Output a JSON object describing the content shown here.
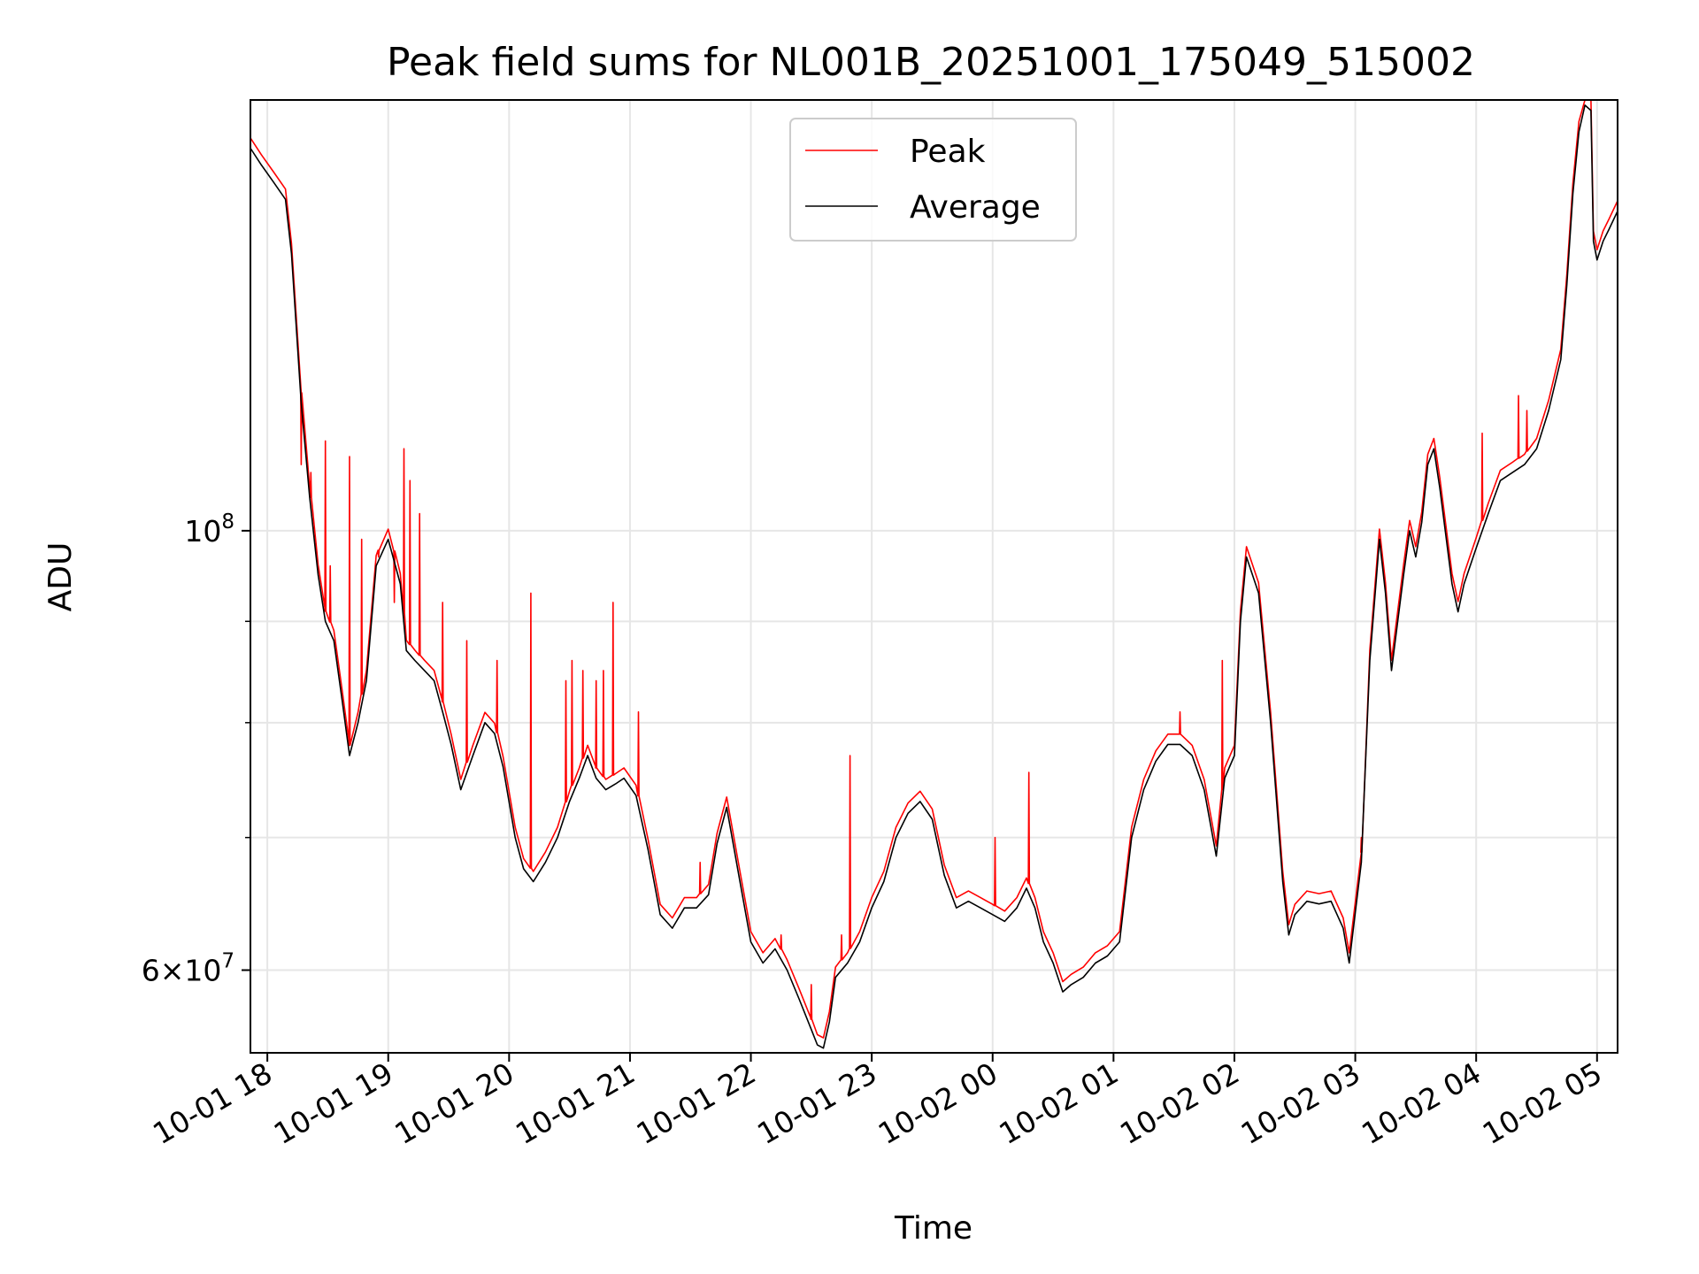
{
  "chart_data": {
    "type": "line",
    "title": "Peak field sums for NL001B_20251001_175049_515002",
    "xlabel": "Time",
    "ylabel": "ADU",
    "yscale": "log",
    "ylim": [
      54500000,
      165000000
    ],
    "xlim": [
      17.86,
      29.17
    ],
    "grid": true,
    "legend": {
      "location": "upper center",
      "entries": [
        "Peak",
        "Average"
      ]
    },
    "x_ticks": [
      {
        "value": 18,
        "label": "10-01 18"
      },
      {
        "value": 19,
        "label": "10-01 19"
      },
      {
        "value": 20,
        "label": "10-01 20"
      },
      {
        "value": 21,
        "label": "10-01 21"
      },
      {
        "value": 22,
        "label": "10-01 22"
      },
      {
        "value": 23,
        "label": "10-01 23"
      },
      {
        "value": 24,
        "label": "10-02 00"
      },
      {
        "value": 25,
        "label": "10-02 01"
      },
      {
        "value": 26,
        "label": "10-02 02"
      },
      {
        "value": 27,
        "label": "10-02 03"
      },
      {
        "value": 28,
        "label": "10-02 04"
      },
      {
        "value": 29,
        "label": "10-02 05"
      }
    ],
    "y_major_ticks": [
      {
        "value": 60000000,
        "base": "6",
        "exp": "7",
        "mult": true
      },
      {
        "value": 100000000,
        "base": "10",
        "exp": "8",
        "mult": false
      }
    ],
    "y_minor_ticks": [
      70000000,
      80000000,
      90000000
    ],
    "x_unit": "hours since 10-01 00:00",
    "series": [
      {
        "name": "Average",
        "color": "#000000",
        "x": [
          17.86,
          17.95,
          18.05,
          18.15,
          18.2,
          18.28,
          18.35,
          18.42,
          18.48,
          18.55,
          18.62,
          18.68,
          18.75,
          18.82,
          18.9,
          19.0,
          19.1,
          19.15,
          19.22,
          19.3,
          19.38,
          19.45,
          19.52,
          19.6,
          19.7,
          19.8,
          19.88,
          19.95,
          20.05,
          20.12,
          20.2,
          20.3,
          20.4,
          20.5,
          20.58,
          20.65,
          20.72,
          20.8,
          20.88,
          20.95,
          21.05,
          21.15,
          21.25,
          21.35,
          21.45,
          21.55,
          21.65,
          21.72,
          21.8,
          21.9,
          22.0,
          22.1,
          22.2,
          22.3,
          22.4,
          22.5,
          22.55,
          22.6,
          22.65,
          22.7,
          22.8,
          22.9,
          23.0,
          23.1,
          23.2,
          23.3,
          23.4,
          23.5,
          23.6,
          23.7,
          23.8,
          23.9,
          24.0,
          24.1,
          24.2,
          24.28,
          24.35,
          24.42,
          24.5,
          24.58,
          24.65,
          24.75,
          24.85,
          24.95,
          25.05,
          25.15,
          25.25,
          25.35,
          25.45,
          25.55,
          25.65,
          25.75,
          25.85,
          25.92,
          26.0,
          26.05,
          26.1,
          26.2,
          26.3,
          26.4,
          26.45,
          26.5,
          26.6,
          26.7,
          26.8,
          26.9,
          26.95,
          27.05,
          27.12,
          27.2,
          27.25,
          27.3,
          27.4,
          27.45,
          27.5,
          27.55,
          27.6,
          27.65,
          27.7,
          27.8,
          27.85,
          27.9,
          28.0,
          28.1,
          28.2,
          28.3,
          28.4,
          28.5,
          28.6,
          28.7,
          28.75,
          28.8,
          28.85,
          28.9,
          28.95,
          28.97,
          29.0,
          29.05,
          29.1,
          29.17
        ],
        "y": [
          156000000,
          153000000,
          150000000,
          147000000,
          138000000,
          116000000,
          104000000,
          95000000,
          90000000,
          88000000,
          82000000,
          77000000,
          80000000,
          84000000,
          96000000,
          99000000,
          94000000,
          87000000,
          86000000,
          85000000,
          84000000,
          81000000,
          78000000,
          74000000,
          77000000,
          80000000,
          79000000,
          76000000,
          70000000,
          67500000,
          66500000,
          68000000,
          70000000,
          73000000,
          75000000,
          77000000,
          75000000,
          74000000,
          74500000,
          75000000,
          73500000,
          69000000,
          64000000,
          63000000,
          64500000,
          64500000,
          65500000,
          69500000,
          72500000,
          67000000,
          62000000,
          60500000,
          61500000,
          60000000,
          58000000,
          56000000,
          55000000,
          54800000,
          56500000,
          59500000,
          60500000,
          62000000,
          64500000,
          66500000,
          70000000,
          72000000,
          73000000,
          71500000,
          67000000,
          64500000,
          65000000,
          64500000,
          64000000,
          63500000,
          64500000,
          66000000,
          64500000,
          62000000,
          60500000,
          58500000,
          59000000,
          59500000,
          60500000,
          61000000,
          62000000,
          70000000,
          74000000,
          76500000,
          78000000,
          78000000,
          77000000,
          74000000,
          68500000,
          75000000,
          77000000,
          90000000,
          97000000,
          93000000,
          80000000,
          66500000,
          62500000,
          64000000,
          65000000,
          64800000,
          65000000,
          63000000,
          60500000,
          68000000,
          86000000,
          99000000,
          93000000,
          85000000,
          95000000,
          100000000,
          97000000,
          101000000,
          108000000,
          110000000,
          105000000,
          94000000,
          91000000,
          94000000,
          98000000,
          102000000,
          106000000,
          107000000,
          108000000,
          110000000,
          115000000,
          122000000,
          133000000,
          148000000,
          159000000,
          164000000,
          163000000,
          140000000,
          137000000,
          140000000,
          142000000,
          145000000
        ]
      },
      {
        "name": "Peak",
        "color": "#ff0000",
        "spikes": [
          {
            "x": 18.28,
            "y": 108000000
          },
          {
            "x": 18.36,
            "y": 107000000
          },
          {
            "x": 18.48,
            "y": 111000000
          },
          {
            "x": 18.52,
            "y": 96000000
          },
          {
            "x": 18.68,
            "y": 109000000
          },
          {
            "x": 18.78,
            "y": 99000000
          },
          {
            "x": 18.92,
            "y": 97000000
          },
          {
            "x": 19.05,
            "y": 92000000
          },
          {
            "x": 19.13,
            "y": 110000000
          },
          {
            "x": 19.18,
            "y": 106000000
          },
          {
            "x": 19.26,
            "y": 102000000
          },
          {
            "x": 19.45,
            "y": 92000000
          },
          {
            "x": 19.65,
            "y": 88000000
          },
          {
            "x": 19.9,
            "y": 86000000
          },
          {
            "x": 20.18,
            "y": 93000000
          },
          {
            "x": 20.47,
            "y": 84000000
          },
          {
            "x": 20.52,
            "y": 86000000
          },
          {
            "x": 20.61,
            "y": 85000000
          },
          {
            "x": 20.72,
            "y": 84000000
          },
          {
            "x": 20.78,
            "y": 85000000
          },
          {
            "x": 20.86,
            "y": 92000000
          },
          {
            "x": 21.07,
            "y": 81000000
          },
          {
            "x": 21.58,
            "y": 68000000
          },
          {
            "x": 22.25,
            "y": 62500000
          },
          {
            "x": 22.5,
            "y": 59000000
          },
          {
            "x": 22.75,
            "y": 62500000
          },
          {
            "x": 22.82,
            "y": 77000000
          },
          {
            "x": 24.02,
            "y": 70000000
          },
          {
            "x": 24.3,
            "y": 75500000
          },
          {
            "x": 25.55,
            "y": 81000000
          },
          {
            "x": 25.9,
            "y": 86000000
          },
          {
            "x": 27.05,
            "y": 70000000
          },
          {
            "x": 28.05,
            "y": 112000000
          },
          {
            "x": 28.35,
            "y": 117000000
          },
          {
            "x": 28.42,
            "y": 115000000
          }
        ]
      }
    ]
  }
}
